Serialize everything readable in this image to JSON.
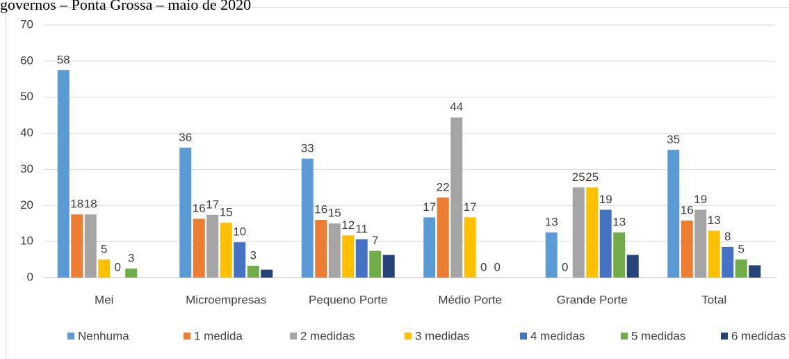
{
  "chart_data": {
    "type": "bar",
    "title": "governos – Ponta Grossa – maio de 2020",
    "categories": [
      "Mei",
      "Microempresas",
      "Pequeno Porte",
      "Médio Porte",
      "Grande Porte",
      "Total"
    ],
    "series": [
      {
        "name": "Nenhuma",
        "color": "#5b9bd5",
        "values": [
          57.5,
          36,
          33,
          16.7,
          12.5,
          35.4
        ],
        "value_labels": [
          "58",
          "36",
          "33",
          "17",
          "13",
          "35"
        ]
      },
      {
        "name": "1 medida",
        "color": "#ed7d31",
        "values": [
          17.5,
          16.3,
          16,
          22.2,
          0,
          15.8
        ],
        "value_labels": [
          "18",
          "16",
          "16",
          "22",
          "0",
          "16"
        ]
      },
      {
        "name": "2 medidas",
        "color": "#a5a5a5",
        "values": [
          17.5,
          17.4,
          15,
          44.4,
          25,
          18.8
        ],
        "value_labels": [
          "18",
          "17",
          "15",
          "44",
          "25",
          "19"
        ]
      },
      {
        "name": "3 medidas",
        "color": "#ffc000",
        "values": [
          5,
          15.2,
          11.7,
          16.7,
          25,
          13
        ],
        "value_labels": [
          "5",
          "15",
          "12",
          "17",
          "25",
          "13"
        ]
      },
      {
        "name": "4 medidas",
        "color": "#4472c4",
        "values": [
          0,
          9.8,
          10.6,
          0,
          18.8,
          8.5
        ],
        "value_labels": [
          "0",
          "10",
          "11",
          "0",
          "19",
          "8"
        ]
      },
      {
        "name": "5 medidas",
        "color": "#70ad47",
        "values": [
          2.5,
          3.3,
          7.4,
          0,
          12.5,
          5
        ],
        "value_labels": [
          "3",
          "3",
          "7",
          "0",
          "13",
          "5"
        ]
      },
      {
        "name": "6 medidas",
        "color": "#264478",
        "values": [
          0,
          2.2,
          6.3,
          0,
          6.3,
          3.4
        ]
      }
    ],
    "ylim": [
      0,
      70
    ],
    "yticks": [
      0,
      10,
      20,
      30,
      40,
      50,
      60,
      70
    ],
    "grid": true,
    "legend": "bottom"
  }
}
